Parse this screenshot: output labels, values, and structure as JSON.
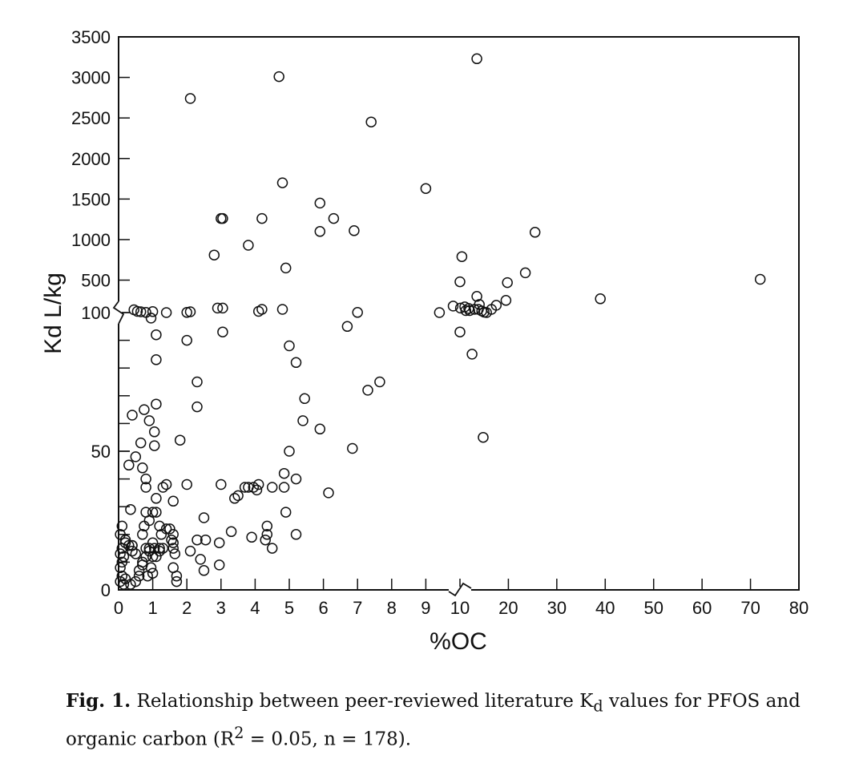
{
  "chart_data": {
    "type": "scatter",
    "xlabel": "%OC",
    "ylabel": "Kd L/kg",
    "x_segments": [
      {
        "range": [
          0,
          10
        ],
        "ticks": [
          0,
          1,
          2,
          3,
          4,
          5,
          6,
          7,
          8,
          9,
          10
        ]
      },
      {
        "range": [
          10,
          80
        ],
        "ticks": [
          10,
          20,
          30,
          40,
          50,
          60,
          70,
          80
        ]
      }
    ],
    "y_segments": [
      {
        "range": [
          0,
          100
        ],
        "labeled_ticks": [
          0,
          50,
          100
        ]
      },
      {
        "range": [
          100,
          3500
        ],
        "labeled_ticks": [
          100,
          500,
          1000,
          1500,
          2000,
          2500,
          3000,
          3500
        ]
      }
    ],
    "axis_breaks": {
      "x": 10,
      "y": 100
    },
    "grid": false,
    "points": [
      [
        0.05,
        3
      ],
      [
        0.1,
        5
      ],
      [
        0.05,
        8
      ],
      [
        0.1,
        10
      ],
      [
        0.15,
        2
      ],
      [
        0.2,
        4
      ],
      [
        0.05,
        13
      ],
      [
        0.1,
        15
      ],
      [
        0.15,
        12
      ],
      [
        0.2,
        17
      ],
      [
        0.3,
        16
      ],
      [
        0.4,
        14
      ],
      [
        0.5,
        3
      ],
      [
        0.6,
        5
      ],
      [
        0.35,
        2
      ],
      [
        0.4,
        16
      ],
      [
        0.5,
        13
      ],
      [
        0.05,
        20
      ],
      [
        0.1,
        23
      ],
      [
        0.2,
        18
      ],
      [
        0.3,
        45
      ],
      [
        0.35,
        29
      ],
      [
        0.4,
        16
      ],
      [
        0.5,
        48
      ],
      [
        0.65,
        53
      ],
      [
        0.7,
        44
      ],
      [
        0.4,
        63
      ],
      [
        0.75,
        65
      ],
      [
        0.9,
        61
      ],
      [
        1.05,
        57
      ],
      [
        1.1,
        67
      ],
      [
        1.05,
        52
      ],
      [
        1.1,
        83
      ],
      [
        1.1,
        92
      ],
      [
        0.8,
        40
      ],
      [
        0.8,
        37
      ],
      [
        1.3,
        37
      ],
      [
        1.4,
        38
      ],
      [
        1.6,
        32
      ],
      [
        1.1,
        33
      ],
      [
        0.8,
        28
      ],
      [
        0.9,
        25
      ],
      [
        1.0,
        28
      ],
      [
        1.1,
        28
      ],
      [
        1.2,
        23
      ],
      [
        1.25,
        20
      ],
      [
        1.4,
        22
      ],
      [
        1.5,
        22
      ],
      [
        1.6,
        20
      ],
      [
        0.7,
        20
      ],
      [
        0.75,
        23
      ],
      [
        0.7,
        10
      ],
      [
        0.8,
        12
      ],
      [
        0.9,
        14
      ],
      [
        1.0,
        12
      ],
      [
        1.1,
        12
      ],
      [
        1.2,
        15
      ],
      [
        0.6,
        7
      ],
      [
        0.7,
        9
      ],
      [
        0.85,
        5
      ],
      [
        0.95,
        8
      ],
      [
        1.0,
        6
      ],
      [
        1.2,
        14
      ],
      [
        1.3,
        15
      ],
      [
        1.55,
        18
      ],
      [
        1.6,
        17
      ],
      [
        1.6,
        15
      ],
      [
        1.65,
        13
      ],
      [
        1.6,
        8
      ],
      [
        1.7,
        3
      ],
      [
        1.7,
        5
      ],
      [
        0.8,
        15
      ],
      [
        0.9,
        15
      ],
      [
        1.05,
        15
      ],
      [
        1.0,
        17
      ],
      [
        0.45,
        135
      ],
      [
        0.55,
        115
      ],
      [
        0.65,
        110
      ],
      [
        0.8,
        102
      ],
      [
        0.95,
        98
      ],
      [
        1.0,
        112
      ],
      [
        1.4,
        100
      ],
      [
        2.0,
        102
      ],
      [
        2.1,
        110
      ],
      [
        1.8,
        54
      ],
      [
        2.0,
        38
      ],
      [
        2.0,
        90
      ],
      [
        2.3,
        75
      ],
      [
        2.3,
        66
      ],
      [
        2.1,
        14
      ],
      [
        2.3,
        18
      ],
      [
        2.4,
        11
      ],
      [
        2.5,
        7
      ],
      [
        2.55,
        18
      ],
      [
        2.5,
        26
      ],
      [
        2.95,
        17
      ],
      [
        2.95,
        9
      ],
      [
        2.9,
        155
      ],
      [
        3.05,
        155
      ],
      [
        3.0,
        38
      ],
      [
        3.05,
        93
      ],
      [
        3.3,
        21
      ],
      [
        3.4,
        33
      ],
      [
        3.5,
        34
      ],
      [
        3.7,
        37
      ],
      [
        3.8,
        37
      ],
      [
        3.95,
        37
      ],
      [
        4.05,
        36
      ],
      [
        4.1,
        38
      ],
      [
        3.9,
        19
      ],
      [
        4.3,
        18
      ],
      [
        4.35,
        20
      ],
      [
        4.35,
        23
      ],
      [
        4.5,
        15
      ],
      [
        4.5,
        37
      ],
      [
        4.1,
        115
      ],
      [
        4.2,
        140
      ],
      [
        4.8,
        140
      ],
      [
        5.0,
        88
      ],
      [
        5.2,
        82
      ],
      [
        5.4,
        61
      ],
      [
        5.45,
        69
      ],
      [
        5.0,
        50
      ],
      [
        4.85,
        42
      ],
      [
        4.85,
        37
      ],
      [
        4.9,
        28
      ],
      [
        5.2,
        40
      ],
      [
        5.2,
        20
      ],
      [
        5.9,
        58
      ],
      [
        6.15,
        35
      ],
      [
        6.7,
        95
      ],
      [
        6.85,
        51
      ],
      [
        7.0,
        102
      ],
      [
        7.3,
        72
      ],
      [
        7.65,
        75
      ],
      [
        3.0,
        1260
      ],
      [
        3.05,
        1260
      ],
      [
        2.8,
        810
      ],
      [
        3.8,
        930
      ],
      [
        4.2,
        1260
      ],
      [
        4.8,
        1700
      ],
      [
        4.9,
        650
      ],
      [
        4.7,
        3010
      ],
      [
        2.1,
        2740
      ],
      [
        5.9,
        1450
      ],
      [
        5.9,
        1100
      ],
      [
        6.3,
        1260
      ],
      [
        6.9,
        1110
      ],
      [
        7.4,
        2450
      ],
      [
        9.0,
        1630
      ],
      [
        10.0,
        480
      ],
      [
        10.4,
        790
      ],
      [
        10.1,
        155
      ],
      [
        9.4,
        100
      ],
      [
        10.0,
        93
      ],
      [
        9.8,
        180
      ],
      [
        11.0,
        170
      ],
      [
        11.2,
        125
      ],
      [
        12.0,
        125
      ],
      [
        13.0,
        140
      ],
      [
        13.5,
        300
      ],
      [
        14.0,
        200
      ],
      [
        14.5,
        120
      ],
      [
        15.5,
        100
      ],
      [
        16.5,
        140
      ],
      [
        17.5,
        190
      ],
      [
        19.5,
        250
      ],
      [
        19.8,
        470
      ],
      [
        23.5,
        590
      ],
      [
        25.5,
        1090
      ],
      [
        39.0,
        270
      ],
      [
        72.0,
        510
      ],
      [
        12.5,
        85
      ],
      [
        14.8,
        55
      ],
      [
        13.5,
        3230
      ],
      [
        11.8,
        150
      ],
      [
        13.8,
        140
      ],
      [
        15.0,
        105
      ]
    ]
  },
  "caption": {
    "fig_label": "Fig. 1.",
    "text_1": " Relationship between peer-reviewed literature K",
    "kd_sub": "d",
    "text_2": " values for PFOS and organic carbon (R",
    "r_sup": "2",
    "text_3": " = 0.05, n = 178)."
  }
}
